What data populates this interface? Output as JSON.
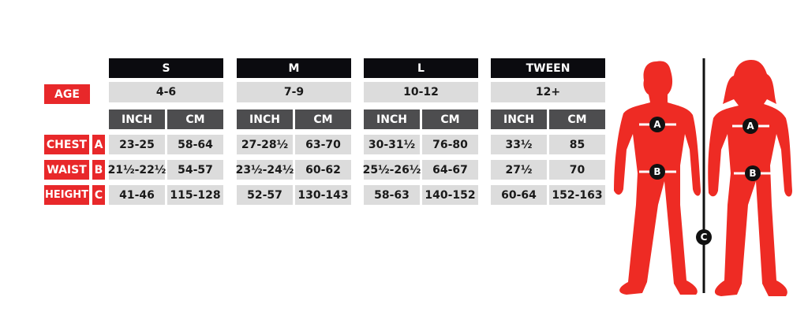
{
  "row_labels": {
    "age": "AGE",
    "chest": "CHEST",
    "waist": "WAIST",
    "height": "HEIGHT"
  },
  "row_letters": {
    "chest": "A",
    "waist": "B",
    "height": "C"
  },
  "units": {
    "inch": "INCH",
    "cm": "CM"
  },
  "sizes": [
    {
      "name": "S",
      "age": "4-6",
      "chest": [
        "23-25",
        "58-64"
      ],
      "waist": [
        "21½-22½",
        "54-57"
      ],
      "height": [
        "41-46",
        "115-128"
      ]
    },
    {
      "name": "M",
      "age": "7-9",
      "chest": [
        "27-28½",
        "63-70"
      ],
      "waist": [
        "23½-24½",
        "60-62"
      ],
      "height": [
        "52-57",
        "130-143"
      ]
    },
    {
      "name": "L",
      "age": "10-12",
      "chest": [
        "30-31½",
        "76-80"
      ],
      "waist": [
        "25½-26½",
        "64-67"
      ],
      "height": [
        "58-63",
        "140-152"
      ]
    },
    {
      "name": "TWEEN",
      "age": "12+",
      "chest": [
        "33½",
        "85"
      ],
      "waist": [
        "27½",
        "70"
      ],
      "height": [
        "60-64",
        "152-163"
      ]
    }
  ],
  "colors": {
    "accent": "#e8282a",
    "header": "#0b0b0f",
    "unit_header": "#4d4d4f",
    "cell": "#dcdcdc"
  },
  "figure": {
    "markers": [
      "A",
      "B",
      "C"
    ]
  }
}
